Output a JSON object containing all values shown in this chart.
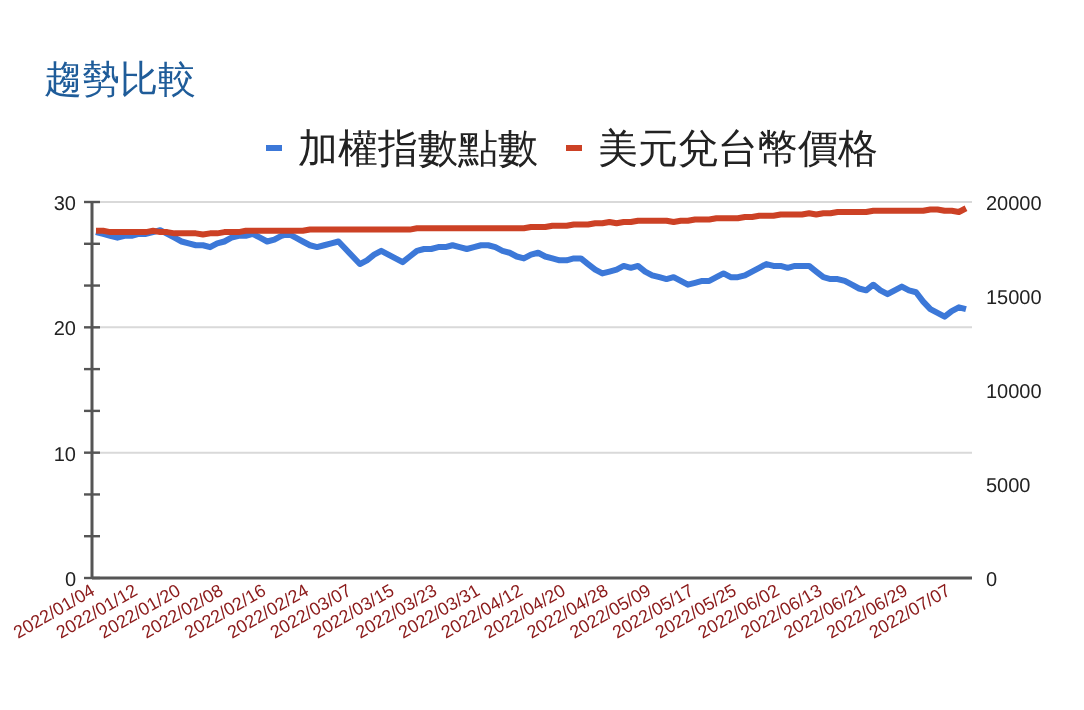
{
  "chart_data": {
    "type": "line",
    "title": "趨勢比較",
    "categories": [
      "2022/01/04",
      null,
      null,
      null,
      null,
      null,
      "2022/01/12",
      null,
      null,
      null,
      null,
      null,
      "2022/01/20",
      null,
      null,
      null,
      null,
      null,
      "2022/02/08",
      null,
      null,
      null,
      null,
      null,
      "2022/02/16",
      null,
      null,
      null,
      null,
      null,
      "2022/02/24",
      null,
      null,
      null,
      null,
      null,
      "2022/03/07",
      null,
      null,
      null,
      null,
      null,
      "2022/03/15",
      null,
      null,
      null,
      null,
      null,
      "2022/03/23",
      null,
      null,
      null,
      null,
      null,
      "2022/03/31",
      null,
      null,
      null,
      null,
      null,
      "2022/04/12",
      null,
      null,
      null,
      null,
      null,
      "2022/04/20",
      null,
      null,
      null,
      null,
      null,
      "2022/04/28",
      null,
      null,
      null,
      null,
      null,
      "2022/05/09",
      null,
      null,
      null,
      null,
      null,
      "2022/05/17",
      null,
      null,
      null,
      null,
      null,
      "2022/05/25",
      null,
      null,
      null,
      null,
      null,
      "2022/06/02",
      null,
      null,
      null,
      null,
      null,
      "2022/06/13",
      null,
      null,
      null,
      null,
      null,
      "2022/06/21",
      null,
      null,
      null,
      null,
      null,
      "2022/06/29",
      null,
      null,
      null,
      null,
      null,
      "2022/07/07",
      null,
      null
    ],
    "series": [
      {
        "name": "加權指數點數",
        "color": "#3c78d8",
        "axis": "y2",
        "values": [
          18400,
          18300,
          18200,
          18100,
          18200,
          18200,
          18300,
          18300,
          18400,
          18500,
          18300,
          18100,
          17900,
          17800,
          17700,
          17700,
          17600,
          17800,
          17900,
          18100,
          18200,
          18200,
          18300,
          18100,
          17900,
          18000,
          18200,
          18300,
          18100,
          17900,
          17700,
          17600,
          17700,
          17800,
          17900,
          17500,
          17100,
          16700,
          16900,
          17200,
          17400,
          17200,
          17000,
          16800,
          17100,
          17400,
          17500,
          17500,
          17600,
          17600,
          17700,
          17600,
          17500,
          17600,
          17700,
          17700,
          17600,
          17400,
          17300,
          17100,
          17000,
          17200,
          17300,
          17100,
          17000,
          16900,
          16900,
          17000,
          17000,
          16700,
          16400,
          16200,
          16300,
          16400,
          16600,
          16500,
          16600,
          16300,
          16100,
          16000,
          15900,
          16000,
          15800,
          15600,
          15700,
          15800,
          15800,
          16000,
          16200,
          16000,
          16000,
          16100,
          16300,
          16500,
          16700,
          16600,
          16600,
          16500,
          16600,
          16600,
          16600,
          16300,
          16000,
          15900,
          15900,
          15800,
          15600,
          15400,
          15300,
          15600,
          15300,
          15100,
          15300,
          15500,
          15300,
          15200,
          14700,
          14300,
          14100,
          13900,
          14200,
          14400,
          14300
        ]
      },
      {
        "name": "美元兌台幣價格",
        "color": "#cc4125",
        "axis": "y",
        "values": [
          27.7,
          27.7,
          27.6,
          27.6,
          27.6,
          27.6,
          27.6,
          27.6,
          27.7,
          27.6,
          27.6,
          27.5,
          27.5,
          27.5,
          27.5,
          27.4,
          27.5,
          27.5,
          27.6,
          27.6,
          27.6,
          27.7,
          27.7,
          27.7,
          27.7,
          27.7,
          27.7,
          27.7,
          27.7,
          27.7,
          27.8,
          27.8,
          27.8,
          27.8,
          27.8,
          27.8,
          27.8,
          27.8,
          27.8,
          27.8,
          27.8,
          27.8,
          27.8,
          27.8,
          27.8,
          27.9,
          27.9,
          27.9,
          27.9,
          27.9,
          27.9,
          27.9,
          27.9,
          27.9,
          27.9,
          27.9,
          27.9,
          27.9,
          27.9,
          27.9,
          27.9,
          28.0,
          28.0,
          28.0,
          28.1,
          28.1,
          28.1,
          28.2,
          28.2,
          28.2,
          28.3,
          28.3,
          28.4,
          28.3,
          28.4,
          28.4,
          28.5,
          28.5,
          28.5,
          28.5,
          28.5,
          28.4,
          28.5,
          28.5,
          28.6,
          28.6,
          28.6,
          28.7,
          28.7,
          28.7,
          28.7,
          28.8,
          28.8,
          28.9,
          28.9,
          28.9,
          29.0,
          29.0,
          29.0,
          29.0,
          29.1,
          29.0,
          29.1,
          29.1,
          29.2,
          29.2,
          29.2,
          29.2,
          29.2,
          29.3,
          29.3,
          29.3,
          29.3,
          29.3,
          29.3,
          29.3,
          29.3,
          29.4,
          29.4,
          29.3,
          29.3,
          29.2,
          29.5
        ]
      }
    ],
    "ylim": [
      0,
      30
    ],
    "yticks": [
      0,
      {
        "value": 3.333,
        "label": null
      },
      {
        "value": 6.667,
        "label": null
      },
      10,
      {
        "value": 13.333,
        "label": null
      },
      {
        "value": 16.667,
        "label": null
      },
      20,
      {
        "value": 23.333,
        "label": null
      },
      {
        "value": 26.667,
        "label": null
      },
      30
    ],
    "y2lim": [
      0,
      20000
    ],
    "y2ticks": [
      0,
      5000,
      10000,
      15000,
      20000
    ],
    "grid": "y",
    "legend": "top"
  }
}
